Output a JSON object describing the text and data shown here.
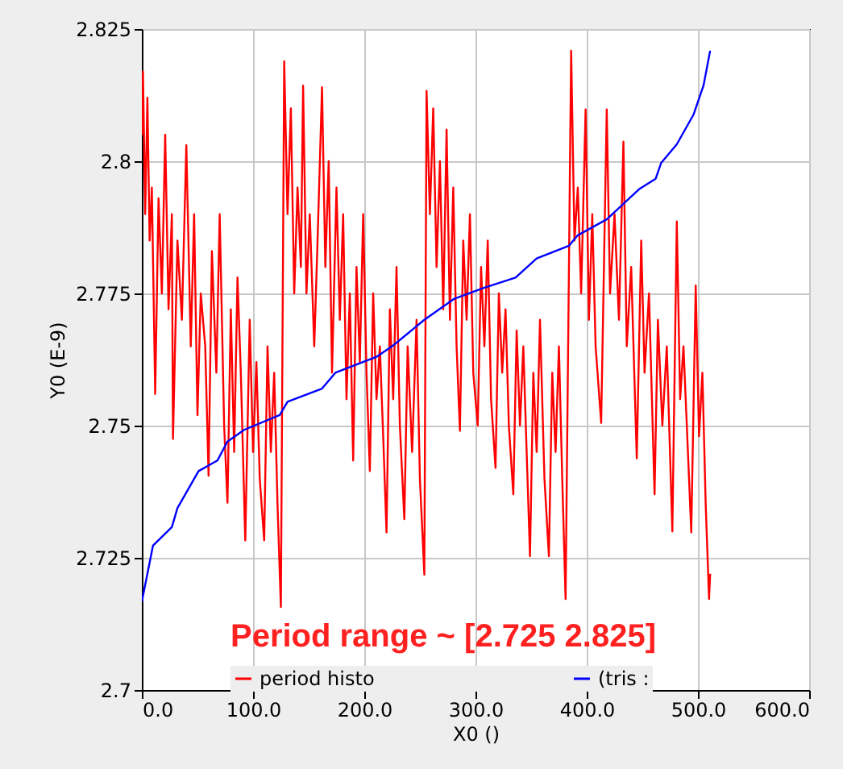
{
  "chart_data": {
    "type": "line",
    "xlabel": "X0 ()",
    "ylabel": "Y0 (E-9)",
    "annotations": [
      "Period range ~ [2.725 2.825]"
    ],
    "xlim": [
      0,
      600
    ],
    "xticks": [
      {
        "value": 0,
        "label": "0.0"
      },
      {
        "value": 100,
        "label": "100.0"
      },
      {
        "value": 200,
        "label": "200.0"
      },
      {
        "value": 300,
        "label": "300.0"
      },
      {
        "value": 400,
        "label": "400.0"
      },
      {
        "value": 500,
        "label": "500.0"
      },
      {
        "value": 600,
        "label": "600.0"
      }
    ],
    "ylim": [
      2.7,
      2.825
    ],
    "yticks": [
      2.7,
      2.725,
      2.75,
      2.775,
      2.8,
      2.825
    ],
    "grid": true,
    "legend": "bottom",
    "marker": "none",
    "line_style": "solid",
    "series": [
      {
        "name": "period histo",
        "color": "#ff0000",
        "x": [
          0,
          1,
          3,
          5,
          7,
          9,
          12,
          15,
          18,
          21,
          24,
          27,
          28,
          32,
          36,
          40,
          44,
          47,
          50,
          53,
          57,
          60,
          63,
          67,
          70,
          74,
          77,
          80,
          83,
          86,
          89,
          93,
          97,
          100,
          103,
          106,
          110,
          113,
          116,
          119,
          122,
          125,
          128,
          131,
          134,
          137,
          140,
          143,
          145,
          148,
          151,
          155,
          158,
          162,
          165,
          168,
          171,
          175,
          178,
          181,
          184,
          187,
          190,
          193,
          196,
          199,
          202,
          205,
          208,
          211,
          214,
          217,
          220,
          223,
          226,
          229,
          232,
          236,
          239,
          243,
          247,
          250,
          254,
          256,
          259,
          262,
          265,
          268,
          271,
          274,
          277,
          280,
          283,
          286,
          289,
          292,
          295,
          298,
          302,
          305,
          308,
          311,
          314,
          318,
          321,
          324,
          327,
          330,
          334,
          337,
          340,
          343,
          346,
          349,
          352,
          355,
          358,
          362,
          366,
          369,
          372,
          375,
          378,
          381,
          386,
          389,
          392,
          395,
          399,
          402,
          405,
          408,
          413,
          418,
          421,
          425,
          429,
          433,
          436,
          440,
          445,
          449,
          452,
          456,
          461,
          464,
          468,
          472,
          477,
          481,
          484,
          487,
          491,
          494,
          498,
          501,
          504,
          507,
          510,
          511
        ],
        "values": [
          2.805,
          2.817,
          2.79,
          2.812,
          2.785,
          2.795,
          2.756,
          2.793,
          2.775,
          2.805,
          2.772,
          2.79,
          2.7475,
          2.785,
          2.77,
          2.803,
          2.765,
          2.79,
          2.752,
          2.775,
          2.765,
          2.7405,
          2.783,
          2.76,
          2.79,
          2.75,
          2.7354,
          2.772,
          2.745,
          2.778,
          2.76,
          2.7283,
          2.77,
          2.745,
          2.762,
          2.74,
          2.7283,
          2.765,
          2.745,
          2.76,
          2.735,
          2.7157,
          2.8189,
          2.79,
          2.81,
          2.775,
          2.795,
          2.78,
          2.8143,
          2.775,
          2.79,
          2.765,
          2.785,
          2.814,
          2.78,
          2.8,
          2.76,
          2.795,
          2.77,
          2.79,
          2.755,
          2.775,
          2.7434,
          2.78,
          2.762,
          2.79,
          2.76,
          2.7414,
          2.775,
          2.755,
          2.765,
          2.748,
          2.7298,
          2.772,
          2.755,
          2.78,
          2.75,
          2.7323,
          2.765,
          2.745,
          2.77,
          2.74,
          2.7218,
          2.8133,
          2.79,
          2.81,
          2.78,
          2.8,
          2.772,
          2.806,
          2.77,
          2.795,
          2.765,
          2.749,
          2.785,
          2.77,
          2.79,
          2.76,
          2.75,
          2.78,
          2.765,
          2.785,
          2.755,
          2.742,
          2.775,
          2.76,
          2.772,
          2.75,
          2.737,
          2.768,
          2.75,
          2.765,
          2.745,
          2.7253,
          2.76,
          2.745,
          2.77,
          2.74,
          2.7253,
          2.76,
          2.745,
          2.765,
          2.74,
          2.7172,
          2.8209,
          2.785,
          2.795,
          2.775,
          2.8098,
          2.77,
          2.79,
          2.765,
          2.7505,
          2.8098,
          2.775,
          2.79,
          2.77,
          2.8037,
          2.765,
          2.78,
          2.7438,
          2.785,
          2.76,
          2.775,
          2.737,
          2.77,
          2.75,
          2.765,
          2.73,
          2.7886,
          2.755,
          2.765,
          2.745,
          2.7298,
          2.7765,
          2.748,
          2.76,
          2.735,
          2.7172,
          2.722
        ]
      },
      {
        "name": "(tris :",
        "color": "#0000ff",
        "x": [
          0,
          10,
          27,
          32,
          51,
          68,
          77,
          92,
          124,
          131,
          162,
          174,
          211,
          225,
          254,
          281,
          307,
          336,
          355,
          384,
          392,
          418,
          447,
          462,
          467,
          481,
          496,
          505,
          511
        ],
        "values": [
          2.7167,
          2.7273,
          2.7308,
          2.7344,
          2.7414,
          2.7434,
          2.747,
          2.7492,
          2.752,
          2.7545,
          2.757,
          2.76,
          2.763,
          2.765,
          2.77,
          2.774,
          2.776,
          2.778,
          2.7816,
          2.784,
          2.786,
          2.789,
          2.7947,
          2.7967,
          2.7997,
          2.8032,
          2.8088,
          2.8143,
          2.8209
        ]
      }
    ]
  }
}
